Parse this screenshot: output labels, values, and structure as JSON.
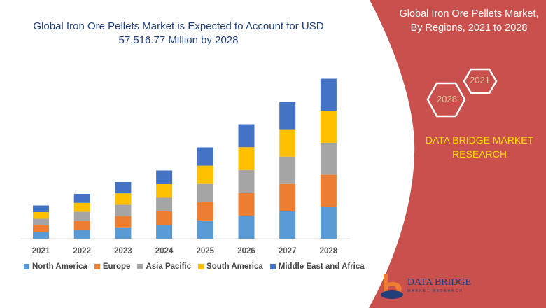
{
  "header": {
    "title": "Global Iron Ore Pellets Market is Expected to Account for USD 57,516.77 Million by 2028"
  },
  "side": {
    "title_line1": "Global Iron Ore Pellets Market,",
    "title_line2": "By Regions, 2021 to 2028",
    "hex_a": "2021",
    "hex_b": "2028",
    "brand_line1": "DATA BRIDGE MARKET",
    "brand_line2": "RESEARCH",
    "panel_color": "#c9504c"
  },
  "logo": {
    "name": "DATA BRIDGE",
    "sub": "MARKET RESEARCH"
  },
  "chart_data": {
    "type": "bar",
    "stacked": true,
    "title": "",
    "xlabel": "",
    "ylabel": "",
    "grid": false,
    "legend_position": "bottom",
    "categories": [
      "2021",
      "2022",
      "2023",
      "2024",
      "2025",
      "2026",
      "2027",
      "2028"
    ],
    "series": [
      {
        "name": "North America",
        "color": "#5b9bd5",
        "values": [
          9.5,
          12.8,
          16.2,
          19.5,
          26.1,
          32.7,
          39.1,
          45.7
        ]
      },
      {
        "name": "Europe",
        "color": "#ed7d31",
        "values": [
          9.5,
          12.8,
          16.2,
          19.5,
          26.1,
          32.7,
          39.1,
          45.7
        ]
      },
      {
        "name": "Asia Pacific",
        "color": "#a5a5a5",
        "values": [
          9.5,
          12.8,
          16.2,
          19.5,
          26.1,
          32.7,
          39.1,
          45.7
        ]
      },
      {
        "name": "South America",
        "color": "#ffc000",
        "values": [
          9.5,
          12.8,
          16.2,
          19.5,
          26.1,
          32.7,
          39.1,
          45.7
        ]
      },
      {
        "name": "Middle East and Africa",
        "color": "#4472c4",
        "values": [
          9.5,
          12.8,
          16.2,
          19.5,
          26.1,
          32.7,
          39.1,
          45.7
        ]
      }
    ]
  }
}
